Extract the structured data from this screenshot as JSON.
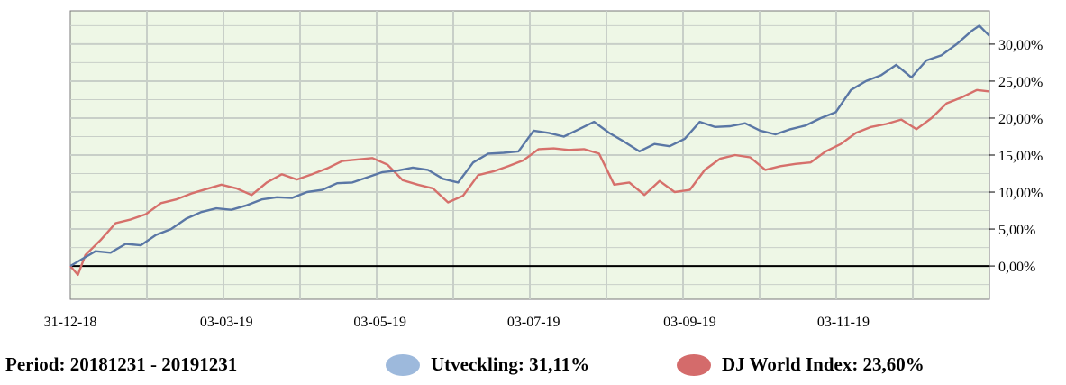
{
  "footer": {
    "period_label": "Period: 20181231 - 20191231",
    "legend": [
      {
        "label": "Utveckling: 31,11%",
        "color": "#9db9dc"
      },
      {
        "label": "DJ World Index: 23,60%",
        "color": "#d46b6b"
      }
    ]
  },
  "colors": {
    "plot_background": "#eef7e6",
    "grid": "#c8cfc8",
    "zero_line": "#000000",
    "series_1": "#5a77a5",
    "series_2": "#d6706b"
  },
  "chart_data": {
    "type": "line",
    "title": "",
    "xlabel": "",
    "ylabel": "",
    "x_range": [
      "2018-12-31",
      "2019-12-31"
    ],
    "x_tick_labels": [
      "31-12-18",
      "03-03-19",
      "03-05-19",
      "03-07-19",
      "03-09-19",
      "03-11-19"
    ],
    "x_ticks": [
      "2018-12-31",
      "2019-03-03",
      "2019-05-03",
      "2019-07-03",
      "2019-09-03",
      "2019-11-03"
    ],
    "ylim": [
      -4.5,
      34.5
    ],
    "y_ticks": [
      0,
      5,
      10,
      15,
      20,
      25,
      30
    ],
    "y_tick_labels": [
      "0,00%",
      "5,00%",
      "10,00%",
      "15,00%",
      "20,00%",
      "25,00%",
      "30,00%"
    ],
    "y_axis_side": "right",
    "grid": true,
    "series": [
      {
        "name": "Utveckling",
        "points": [
          [
            "2018-12-31",
            0
          ],
          [
            "2019-01-04",
            0.8
          ],
          [
            "2019-01-10",
            2.0
          ],
          [
            "2019-01-16",
            1.8
          ],
          [
            "2019-01-22",
            3.0
          ],
          [
            "2019-01-28",
            2.8
          ],
          [
            "2019-02-03",
            4.2
          ],
          [
            "2019-02-09",
            5.0
          ],
          [
            "2019-02-15",
            6.4
          ],
          [
            "2019-02-21",
            7.3
          ],
          [
            "2019-02-27",
            7.8
          ],
          [
            "2019-03-05",
            7.6
          ],
          [
            "2019-03-11",
            8.2
          ],
          [
            "2019-03-17",
            9.0
          ],
          [
            "2019-03-23",
            9.3
          ],
          [
            "2019-03-29",
            9.2
          ],
          [
            "2019-04-04",
            10.0
          ],
          [
            "2019-04-10",
            10.3
          ],
          [
            "2019-04-16",
            11.2
          ],
          [
            "2019-04-22",
            11.3
          ],
          [
            "2019-04-28",
            12.0
          ],
          [
            "2019-05-04",
            12.7
          ],
          [
            "2019-05-10",
            12.9
          ],
          [
            "2019-05-16",
            13.3
          ],
          [
            "2019-05-22",
            13.0
          ],
          [
            "2019-05-28",
            11.8
          ],
          [
            "2019-06-03",
            11.3
          ],
          [
            "2019-06-09",
            14.0
          ],
          [
            "2019-06-15",
            15.2
          ],
          [
            "2019-06-21",
            15.3
          ],
          [
            "2019-06-27",
            15.5
          ],
          [
            "2019-07-03",
            18.3
          ],
          [
            "2019-07-09",
            18.0
          ],
          [
            "2019-07-15",
            17.5
          ],
          [
            "2019-07-21",
            18.5
          ],
          [
            "2019-07-27",
            19.5
          ],
          [
            "2019-08-02",
            18.0
          ],
          [
            "2019-08-08",
            16.8
          ],
          [
            "2019-08-14",
            15.5
          ],
          [
            "2019-08-20",
            16.5
          ],
          [
            "2019-08-26",
            16.2
          ],
          [
            "2019-09-01",
            17.2
          ],
          [
            "2019-09-07",
            19.5
          ],
          [
            "2019-09-13",
            18.8
          ],
          [
            "2019-09-19",
            18.9
          ],
          [
            "2019-09-25",
            19.3
          ],
          [
            "2019-10-01",
            18.3
          ],
          [
            "2019-10-07",
            17.8
          ],
          [
            "2019-10-13",
            18.5
          ],
          [
            "2019-10-19",
            19.0
          ],
          [
            "2019-10-25",
            20.0
          ],
          [
            "2019-10-31",
            20.8
          ],
          [
            "2019-11-06",
            23.8
          ],
          [
            "2019-11-12",
            25.0
          ],
          [
            "2019-11-18",
            25.8
          ],
          [
            "2019-11-24",
            27.2
          ],
          [
            "2019-11-30",
            25.5
          ],
          [
            "2019-12-06",
            27.8
          ],
          [
            "2019-12-12",
            28.5
          ],
          [
            "2019-12-18",
            30.0
          ],
          [
            "2019-12-24",
            31.8
          ],
          [
            "2019-12-27",
            32.5
          ],
          [
            "2019-12-31",
            31.11
          ]
        ]
      },
      {
        "name": "DJ World Index",
        "points": [
          [
            "2018-12-31",
            0
          ],
          [
            "2019-01-03",
            -1.2
          ],
          [
            "2019-01-06",
            1.5
          ],
          [
            "2019-01-12",
            3.5
          ],
          [
            "2019-01-18",
            5.8
          ],
          [
            "2019-01-24",
            6.3
          ],
          [
            "2019-01-30",
            7.0
          ],
          [
            "2019-02-05",
            8.5
          ],
          [
            "2019-02-11",
            9.0
          ],
          [
            "2019-02-17",
            9.8
          ],
          [
            "2019-02-23",
            10.4
          ],
          [
            "2019-03-01",
            11.0
          ],
          [
            "2019-03-07",
            10.5
          ],
          [
            "2019-03-13",
            9.6
          ],
          [
            "2019-03-19",
            11.3
          ],
          [
            "2019-03-25",
            12.4
          ],
          [
            "2019-03-31",
            11.7
          ],
          [
            "2019-04-06",
            12.4
          ],
          [
            "2019-04-12",
            13.2
          ],
          [
            "2019-04-18",
            14.2
          ],
          [
            "2019-04-24",
            14.4
          ],
          [
            "2019-04-30",
            14.6
          ],
          [
            "2019-05-06",
            13.7
          ],
          [
            "2019-05-12",
            11.6
          ],
          [
            "2019-05-18",
            11.0
          ],
          [
            "2019-05-24",
            10.5
          ],
          [
            "2019-05-30",
            8.6
          ],
          [
            "2019-06-05",
            9.5
          ],
          [
            "2019-06-11",
            12.3
          ],
          [
            "2019-06-17",
            12.8
          ],
          [
            "2019-06-23",
            13.5
          ],
          [
            "2019-06-29",
            14.3
          ],
          [
            "2019-07-05",
            15.8
          ],
          [
            "2019-07-11",
            15.9
          ],
          [
            "2019-07-17",
            15.7
          ],
          [
            "2019-07-23",
            15.8
          ],
          [
            "2019-07-29",
            15.2
          ],
          [
            "2019-08-04",
            11.0
          ],
          [
            "2019-08-10",
            11.3
          ],
          [
            "2019-08-16",
            9.6
          ],
          [
            "2019-08-22",
            11.5
          ],
          [
            "2019-08-28",
            10.0
          ],
          [
            "2019-09-03",
            10.3
          ],
          [
            "2019-09-09",
            13.0
          ],
          [
            "2019-09-15",
            14.5
          ],
          [
            "2019-09-21",
            15.0
          ],
          [
            "2019-09-27",
            14.7
          ],
          [
            "2019-10-03",
            13.0
          ],
          [
            "2019-10-09",
            13.5
          ],
          [
            "2019-10-15",
            13.8
          ],
          [
            "2019-10-21",
            14.0
          ],
          [
            "2019-10-27",
            15.5
          ],
          [
            "2019-11-02",
            16.5
          ],
          [
            "2019-11-08",
            18.0
          ],
          [
            "2019-11-14",
            18.8
          ],
          [
            "2019-11-20",
            19.2
          ],
          [
            "2019-11-26",
            19.8
          ],
          [
            "2019-12-02",
            18.5
          ],
          [
            "2019-12-08",
            20.0
          ],
          [
            "2019-12-14",
            22.0
          ],
          [
            "2019-12-20",
            22.8
          ],
          [
            "2019-12-26",
            23.8
          ],
          [
            "2019-12-31",
            23.6
          ]
        ]
      }
    ]
  }
}
